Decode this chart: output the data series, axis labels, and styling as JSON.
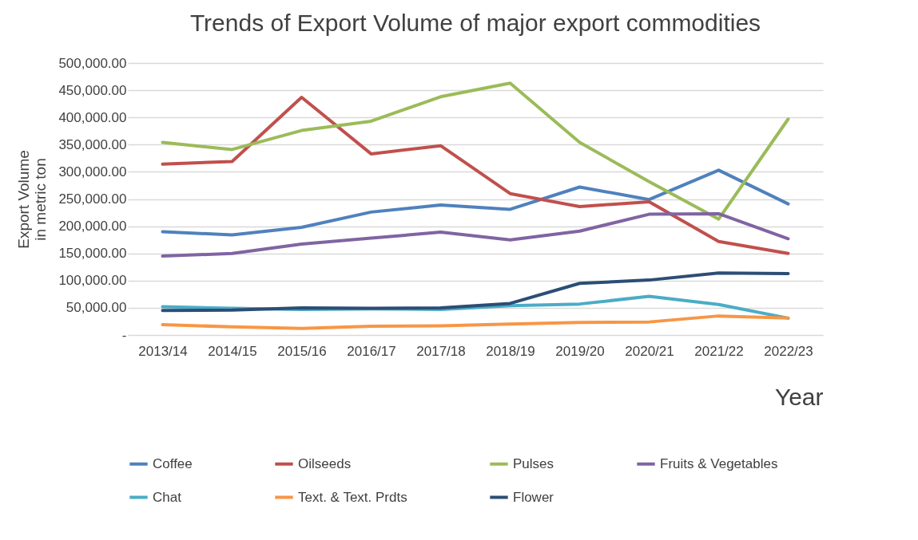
{
  "chart_data": {
    "type": "line",
    "title": "Trends of Export Volume of major export commodities",
    "xlabel": "Year",
    "ylabel": "Export Volume\nin metric ton",
    "categories": [
      "2013/14",
      "2014/15",
      "2015/16",
      "2016/17",
      "2017/18",
      "2018/19",
      "2019/20",
      "2020/21",
      "2021/22",
      "2022/23"
    ],
    "series": [
      {
        "name": "Coffee",
        "color": "#4f81bd",
        "values": [
          190000,
          184000,
          198000,
          226000,
          239000,
          231000,
          272000,
          249000,
          303000,
          241000
        ]
      },
      {
        "name": "Oilseeds",
        "color": "#c0504d",
        "values": [
          314000,
          319000,
          437000,
          333000,
          348000,
          260000,
          236000,
          245000,
          172000,
          150000
        ]
      },
      {
        "name": "Pulses",
        "color": "#9bbb59",
        "values": [
          354000,
          341000,
          376000,
          393000,
          438000,
          463000,
          354000,
          282000,
          213000,
          397000
        ]
      },
      {
        "name": "Fruits & Vegetables",
        "color": "#8064a2",
        "values": [
          145000,
          150000,
          167000,
          178000,
          189000,
          175000,
          191000,
          222000,
          223000,
          177000
        ]
      },
      {
        "name": "Chat",
        "color": "#4bacc6",
        "values": [
          52000,
          49000,
          47000,
          48000,
          47000,
          54000,
          57000,
          71000,
          56000,
          31000
        ]
      },
      {
        "name": "Text. & Text. Prdts",
        "color": "#f79646",
        "values": [
          19000,
          15000,
          12000,
          16000,
          17000,
          20000,
          23000,
          24000,
          35000,
          31000
        ]
      },
      {
        "name": "Flower",
        "color": "#2c4d75",
        "values": [
          45000,
          46000,
          50000,
          49000,
          50000,
          58000,
          95000,
          101000,
          114000,
          113000
        ]
      }
    ],
    "ylim": [
      0,
      500000
    ],
    "yticks": [
      {
        "value": 0,
        "label": "-"
      },
      {
        "value": 50000,
        "label": "50,000.00"
      },
      {
        "value": 100000,
        "label": "100,000.00"
      },
      {
        "value": 150000,
        "label": "150,000.00"
      },
      {
        "value": 200000,
        "label": "200,000.00"
      },
      {
        "value": 250000,
        "label": "250,000.00"
      },
      {
        "value": 300000,
        "label": "300,000.00"
      },
      {
        "value": 350000,
        "label": "350,000.00"
      },
      {
        "value": 400000,
        "label": "400,000.00"
      },
      {
        "value": 450000,
        "label": "450,000.00"
      },
      {
        "value": 500000,
        "label": "500,000.00"
      }
    ],
    "grid": "y",
    "legend": "bottom",
    "marker": "none",
    "line_style": "solid"
  }
}
